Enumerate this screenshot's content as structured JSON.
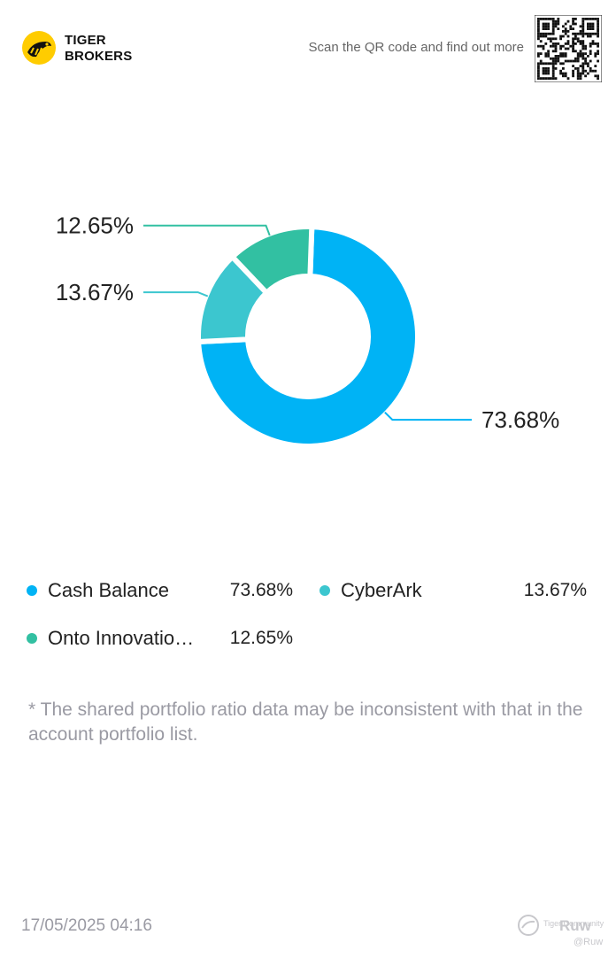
{
  "header": {
    "brand_line1": "TIGER",
    "brand_line2": "BROKERS",
    "scan_text": "Scan the QR code and find out more"
  },
  "colors": {
    "cash": "#00b3f5",
    "cyberark": "#3cc6cf",
    "onto": "#32c0a2",
    "label_text": "#222222",
    "muted_text": "#9a9aa3"
  },
  "chart_data": {
    "type": "pie",
    "variant": "donut",
    "slices": [
      {
        "label": "Cash Balance",
        "value": 73.68,
        "display": "73.68%",
        "color": "#00b3f5"
      },
      {
        "label": "CyberArk",
        "value": 13.67,
        "display": "13.67%",
        "color": "#3cc6cf"
      },
      {
        "label": "Onto Innovation",
        "value": 12.65,
        "display": "12.65%",
        "color": "#32c0a2"
      }
    ]
  },
  "legend": [
    {
      "name": "Onto Innovatio…",
      "value": "12.65%",
      "color": "#32c0a2"
    }
  ],
  "note": "* The shared portfolio ratio data may be inconsistent with that in the account portfolio list.",
  "footer": {
    "date": "17/05/2025 04:16",
    "watermark_text": "Tiger Community",
    "watermark_name": "Ruw",
    "watermark_handle": "@Ruw"
  }
}
